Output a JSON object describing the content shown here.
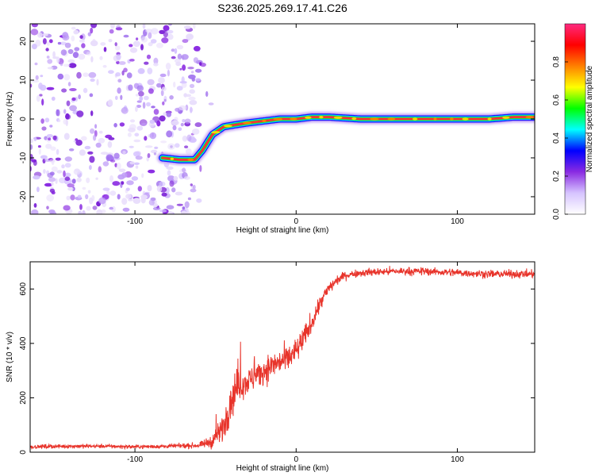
{
  "title": "S236.2025.269.17.41.C26",
  "chart_data": [
    {
      "type": "heatmap",
      "title": "S236.2025.269.17.41.C26",
      "xlabel": "Height of straight line (km)",
      "ylabel": "Frequency (Hz)",
      "xlim": [
        -165,
        148
      ],
      "ylim": [
        -24.5,
        24.5
      ],
      "xticks": [
        -100,
        0,
        100
      ],
      "yticks": [
        -20,
        -10,
        0,
        10,
        20
      ],
      "noise_region_x": [
        -165,
        -60
      ],
      "ridge": {
        "name": "dominant frequency track",
        "x": [
          -83,
          -72,
          -63,
          -58,
          -52,
          -45,
          -38,
          -30,
          -20,
          -10,
          0,
          10,
          20,
          40,
          60,
          80,
          100,
          120,
          135,
          148
        ],
        "y": [
          -10,
          -10.5,
          -10.5,
          -8,
          -4,
          -2,
          -1.5,
          -1,
          -0.5,
          0,
          0,
          0.5,
          0.5,
          0,
          0,
          0,
          0,
          0,
          0.5,
          0.5
        ]
      },
      "colorbar": {
        "label": "Normalized spectral amplitude",
        "ticks": [
          0.0,
          0.2,
          0.4,
          0.6,
          0.8
        ],
        "range": [
          0,
          1
        ],
        "colors": [
          "#ffffff",
          "#d6c4ff",
          "#8a2be2",
          "#0000ff",
          "#00ffff",
          "#00ff00",
          "#ffff00",
          "#ff8000",
          "#ff0000",
          "#ff2a80"
        ]
      }
    },
    {
      "type": "line",
      "xlabel": "Height of straight line (km)",
      "ylabel": "SNR (10 * v/v)",
      "xlim": [
        -165,
        148
      ],
      "ylim": [
        0,
        700
      ],
      "xticks": [
        -100,
        0,
        100
      ],
      "yticks": [
        0,
        200,
        400,
        600
      ],
      "series": [
        {
          "name": "SNR",
          "color": "#e8342b",
          "x": [
            -165,
            -140,
            -120,
            -100,
            -80,
            -60,
            -52,
            -46,
            -42,
            -38,
            -34,
            -30,
            -25,
            -20,
            -15,
            -10,
            -5,
            0,
            5,
            10,
            15,
            20,
            25,
            30,
            40,
            60,
            80,
            100,
            120,
            148
          ],
          "y": [
            20,
            22,
            22,
            20,
            22,
            25,
            40,
            80,
            160,
            230,
            250,
            260,
            280,
            300,
            320,
            330,
            345,
            370,
            420,
            480,
            550,
            600,
            630,
            650,
            660,
            665,
            665,
            660,
            655,
            655
          ],
          "noise": [
            6,
            6,
            6,
            6,
            6,
            8,
            20,
            45,
            60,
            60,
            45,
            40,
            40,
            40,
            40,
            40,
            40,
            40,
            35,
            30,
            25,
            20,
            15,
            12,
            12,
            12,
            12,
            12,
            12,
            12
          ]
        }
      ]
    }
  ]
}
